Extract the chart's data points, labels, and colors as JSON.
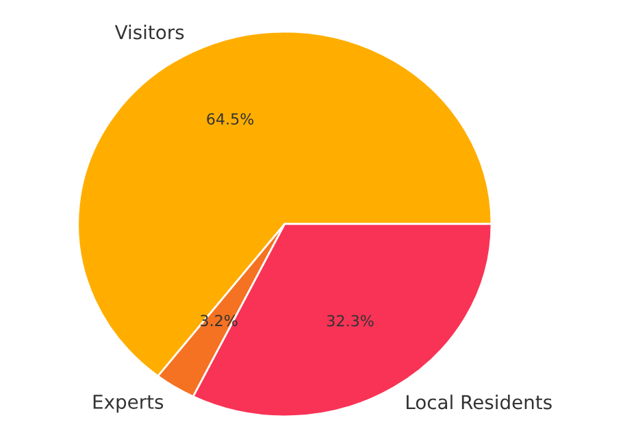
{
  "chart_data": {
    "type": "pie",
    "categories": [
      "Visitors",
      "Experts",
      "Local Residents"
    ],
    "values": [
      64.5,
      3.2,
      32.3
    ],
    "value_labels": [
      "64.5%",
      "3.2%",
      "32.3%"
    ],
    "colors": [
      "#ffae00",
      "#f47222",
      "#f83356"
    ]
  }
}
